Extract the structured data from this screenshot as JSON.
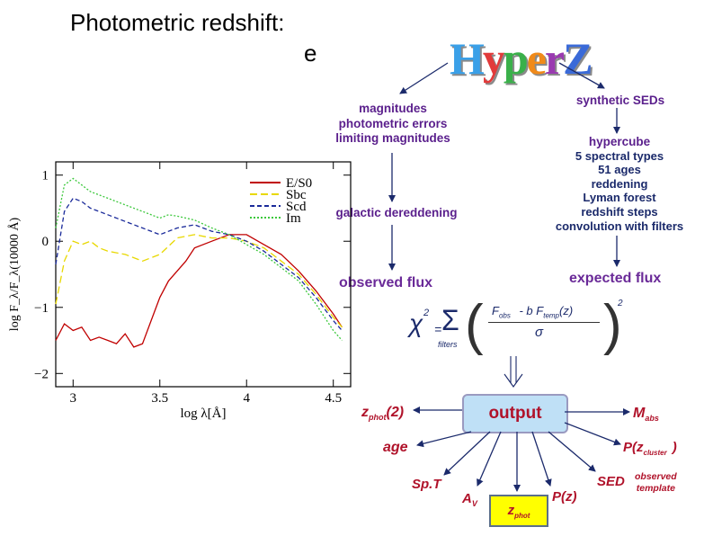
{
  "title": {
    "line1": "Photometric redshift:",
    "line2": "e"
  },
  "logo": {
    "text": "HyperZ",
    "letters": [
      "H",
      "y",
      "p",
      "e",
      "r",
      "Z"
    ]
  },
  "left_branch": {
    "inputs": [
      "magnitudes",
      "photometric errors",
      "limiting magnitudes"
    ],
    "dereddening": "galactic dereddening",
    "observed": "observed flux"
  },
  "right_branch": {
    "synthetic": "synthetic SEDs",
    "hypercube_title": "hypercube",
    "hypercube_items": [
      "5 spectral types",
      "51 ages",
      "reddening",
      "Lyman forest",
      "redshift steps",
      "convolution with filters"
    ],
    "expected": "expected flux"
  },
  "chi2": {
    "chi": "χ",
    "sq": "2",
    "eq": "=",
    "sum": "Σ",
    "sub": "filters",
    "fobs": "F",
    "fobs_sub": "obs",
    "minus": "- b F",
    "ftemp_sub": "temp",
    "ftemp_arg": "(z)",
    "sigma": "σ",
    "pow": "2"
  },
  "output": {
    "center": "output",
    "zphot2": "z",
    "zphot2_sub": "phot",
    "zphot2_arg": "(2)",
    "age": "age",
    "spt": "Sp.T",
    "av": "A",
    "av_sub": "V",
    "zphot": "z",
    "zphot_sub": "phot",
    "pz": "P(z)",
    "sed": "SED",
    "sed_note": [
      "observed",
      "template"
    ],
    "mabs": "M",
    "mabs_sub": "abs",
    "pzcluster": "P(z",
    "pzcluster_sub": "cluster",
    "pzcluster_close": ")"
  },
  "chart_data": {
    "type": "line",
    "xlabel": "log λ[Å]",
    "ylabel": "log F_λ/F_λ(10000 Å)",
    "xlim": [
      2.9,
      4.6
    ],
    "ylim": [
      -2.2,
      1.2
    ],
    "xticks": [
      "3",
      "3.5",
      "4",
      "4.5"
    ],
    "yticks": [
      "1",
      "0",
      "−1",
      "−2"
    ],
    "legend_position": "top-right",
    "series": [
      {
        "name": "E/S0",
        "color": "#c00000",
        "x": [
          2.9,
          2.95,
          3.0,
          3.05,
          3.1,
          3.15,
          3.2,
          3.25,
          3.3,
          3.35,
          3.4,
          3.45,
          3.5,
          3.55,
          3.6,
          3.65,
          3.7,
          3.8,
          3.9,
          4.0,
          4.1,
          4.2,
          4.3,
          4.4,
          4.5,
          4.55
        ],
        "y": [
          -1.5,
          -1.25,
          -1.35,
          -1.3,
          -1.5,
          -1.45,
          -1.5,
          -1.55,
          -1.4,
          -1.6,
          -1.55,
          -1.2,
          -0.85,
          -0.6,
          -0.45,
          -0.3,
          -0.1,
          0.0,
          0.1,
          0.1,
          -0.05,
          -0.2,
          -0.45,
          -0.75,
          -1.1,
          -1.3
        ]
      },
      {
        "name": "Sbc",
        "color": "#e8d800",
        "x": [
          2.9,
          2.95,
          3.0,
          3.05,
          3.1,
          3.15,
          3.2,
          3.3,
          3.4,
          3.5,
          3.6,
          3.7,
          3.8,
          3.9,
          4.0,
          4.1,
          4.2,
          4.3,
          4.4,
          4.5,
          4.55
        ],
        "y": [
          -0.95,
          -0.3,
          0.0,
          -0.05,
          0.0,
          -0.1,
          -0.15,
          -0.2,
          -0.3,
          -0.2,
          0.05,
          0.1,
          0.05,
          0.05,
          0.0,
          -0.1,
          -0.3,
          -0.5,
          -0.8,
          -1.15,
          -1.3
        ]
      },
      {
        "name": "Scd",
        "color": "#1a2a9a",
        "x": [
          2.9,
          2.95,
          3.0,
          3.05,
          3.1,
          3.2,
          3.3,
          3.4,
          3.5,
          3.55,
          3.6,
          3.7,
          3.8,
          3.9,
          4.0,
          4.1,
          4.2,
          4.3,
          4.4,
          4.5,
          4.55
        ],
        "y": [
          -0.35,
          0.45,
          0.65,
          0.6,
          0.5,
          0.4,
          0.3,
          0.2,
          0.1,
          0.15,
          0.2,
          0.25,
          0.15,
          0.1,
          0.0,
          -0.15,
          -0.35,
          -0.55,
          -0.85,
          -1.2,
          -1.35
        ]
      },
      {
        "name": "Im",
        "color": "#3cc83c",
        "x": [
          2.9,
          2.95,
          3.0,
          3.05,
          3.1,
          3.2,
          3.3,
          3.4,
          3.5,
          3.55,
          3.6,
          3.7,
          3.8,
          3.9,
          4.0,
          4.1,
          4.2,
          4.3,
          4.4,
          4.5,
          4.55
        ],
        "y": [
          0.2,
          0.85,
          0.95,
          0.85,
          0.75,
          0.65,
          0.55,
          0.45,
          0.35,
          0.4,
          0.38,
          0.32,
          0.2,
          0.1,
          -0.05,
          -0.2,
          -0.4,
          -0.6,
          -0.95,
          -1.35,
          -1.5
        ]
      }
    ]
  }
}
